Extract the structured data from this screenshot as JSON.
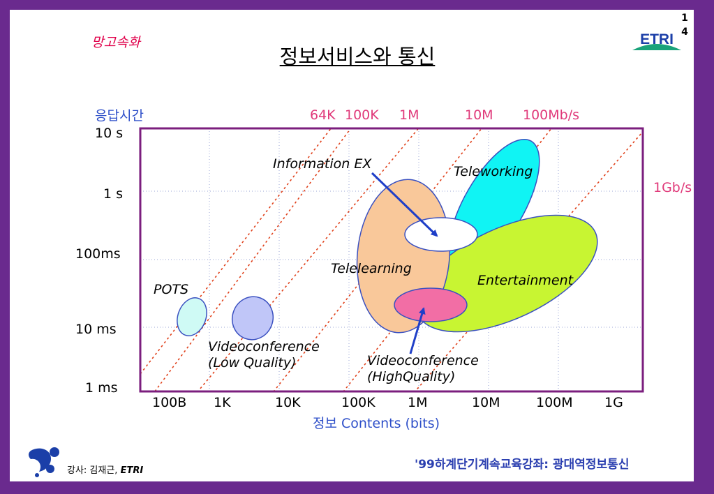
{
  "page_number": "1 4",
  "logo_text": "ETRI",
  "tag": "망고속화",
  "title": "정보서비스와 통신",
  "diagram": {
    "ylabel": "응답시간",
    "xlabel": "정보 Contents (bits)",
    "y_ticks": [
      "10 s",
      "1 s",
      "100ms",
      "10 ms",
      "1 ms"
    ],
    "x_ticks": [
      "100B",
      "1K",
      "10K",
      "100K",
      "1M",
      "10M",
      "100M",
      "1G"
    ],
    "throughput_labels": [
      "64K",
      "100K",
      "1M",
      "10M",
      "100Mb/s",
      "1Gb/s"
    ],
    "regions": {
      "pots": "POTS",
      "video_low_1": "Videoconference",
      "video_low_2": "(Low Quality)",
      "video_high_1": "Videoconference",
      "video_high_2": "(HighQuality)",
      "telelearning": "Telelearning",
      "teleworking": "Teleworking",
      "entertainment": "Entertainment",
      "information_ex": "Information EX"
    },
    "colors": {
      "frame": "#7b1e7e",
      "guides": "#e0401a",
      "pots": "#cffaf5",
      "video_low": "#c0c6f8",
      "telelearning": "#f9c89a",
      "teleworking": "#10f4f4",
      "entertainment": "#c8f532",
      "information_ex": "#ffffff",
      "video_high": "#f26ea5",
      "arrow": "#1f3fc8"
    }
  },
  "footer": {
    "left_prefix": "강사: 김재근, ",
    "left_org": "ETRI",
    "right": "'99하계단기계속교육강좌: 광대역정보통신"
  }
}
